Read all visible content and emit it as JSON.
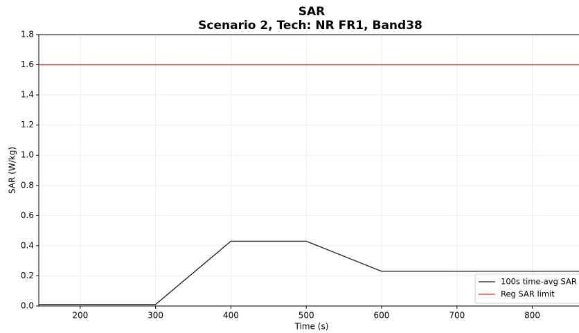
{
  "chart_data": {
    "type": "line",
    "title": "SAR",
    "subtitle": "Scenario 2, Tech: NR FR1, Band38",
    "x_label": "Time (s)",
    "y_label": "SAR (W/kg)",
    "series": [
      {
        "name": "100s time-avg SAR",
        "color": "#1a1a1a",
        "x": [
          145,
          300,
          400,
          500,
          600,
          862
        ],
        "values": [
          0.01,
          0.01,
          0.43,
          0.43,
          0.23,
          0.23
        ]
      },
      {
        "name": "Reg SAR limit",
        "color": "#e8261e",
        "x": [
          145,
          862
        ],
        "values": [
          1.6,
          1.6
        ]
      }
    ],
    "xlim": [
      145,
      862
    ],
    "ylim": [
      0,
      1.8
    ],
    "xticks": [
      200,
      300,
      400,
      500,
      600,
      700,
      800
    ],
    "yticks": [
      {
        "value": 0,
        "label": "0.0"
      },
      {
        "value": 0.2,
        "label": "0.2"
      },
      {
        "value": 0.4,
        "label": "0.4"
      },
      {
        "value": 0.6,
        "label": "0.6"
      },
      {
        "value": 0.8,
        "label": "0.8"
      },
      {
        "value": 1.0,
        "label": "1.0"
      },
      {
        "value": 1.2,
        "label": "1.2"
      },
      {
        "value": 1.4,
        "label": "1.4"
      },
      {
        "value": 1.6,
        "label": "1.6"
      },
      {
        "value": 1.8,
        "label": "1.8"
      }
    ],
    "grid": true,
    "legend": "lower right"
  }
}
